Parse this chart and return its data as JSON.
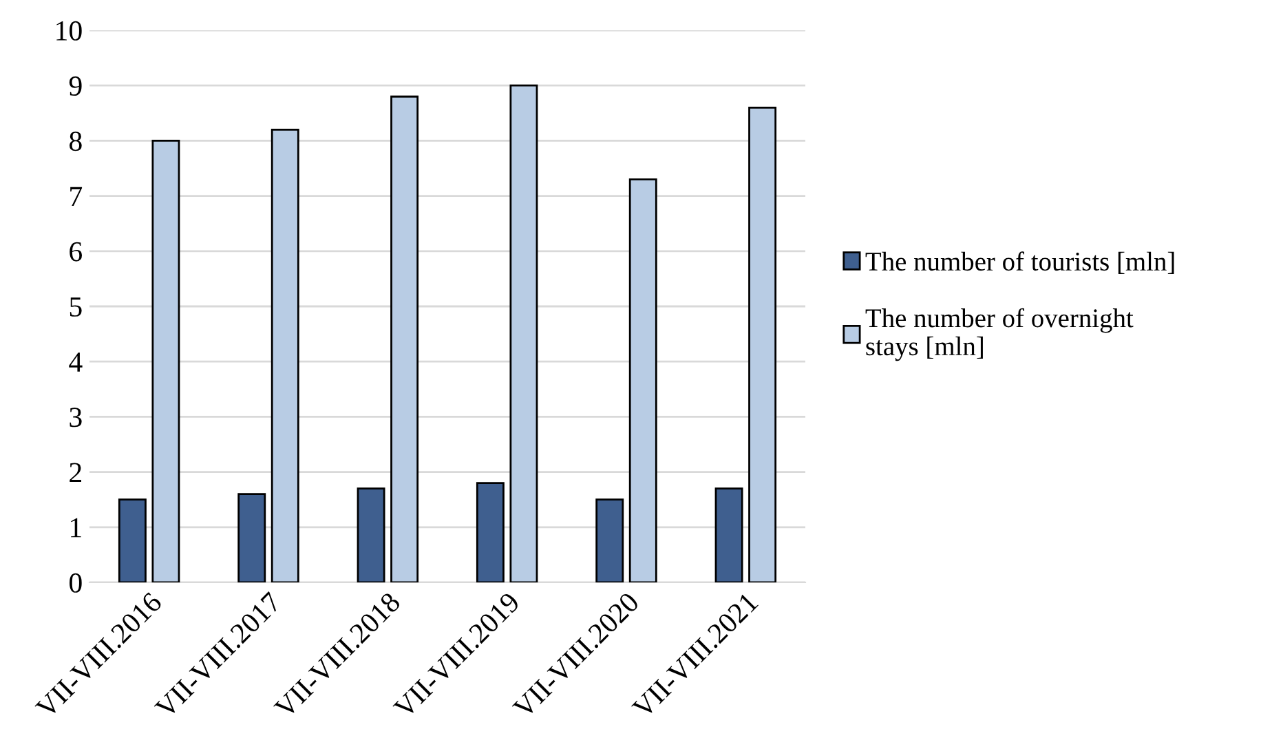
{
  "chart_data": {
    "type": "bar",
    "categories": [
      "VII-VIII.2016",
      "VII-VIII.2017",
      "VII-VIII.2018",
      "VII-VIII.2019",
      "VII-VIII.2020",
      "VII-VIII.2021"
    ],
    "series": [
      {
        "name": "The number of tourists [mln]",
        "color": "#3f5f8f",
        "values": [
          1.5,
          1.6,
          1.7,
          1.8,
          1.5,
          1.7
        ]
      },
      {
        "name": "The number of overnight\nstays [mln]",
        "color": "#b8cce4",
        "values": [
          8.0,
          8.2,
          8.8,
          9.0,
          7.3,
          8.6
        ]
      }
    ],
    "ylim": [
      0,
      10
    ],
    "yticks": [
      0,
      1,
      2,
      3,
      4,
      5,
      6,
      7,
      8,
      9,
      10
    ],
    "grid": "y",
    "legend": "right"
  }
}
